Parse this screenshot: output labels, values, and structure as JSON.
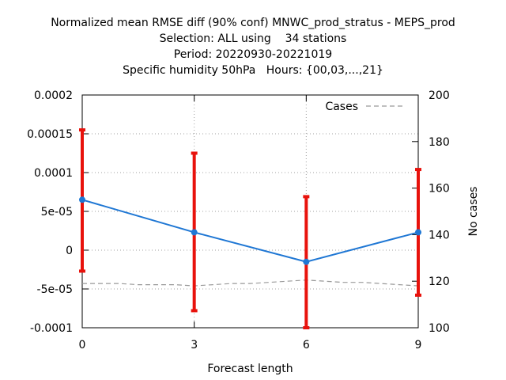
{
  "title_lines": [
    "Normalized mean RMSE diff (90% conf) MNWC_prod_stratus - MEPS_prod",
    "Selection: ALL using    34 stations",
    "Period: 20220930-20221019",
    "Specific humidity 50hPa   Hours: {00,03,...,21}"
  ],
  "chart_data": {
    "type": "line",
    "title": "Normalized mean RMSE diff (90% conf) MNWC_prod_stratus - MEPS_prod",
    "xlabel": "Forecast length",
    "ylabel": "",
    "y2label": "No cases",
    "x": [
      0,
      3,
      6,
      9
    ],
    "xlim": [
      0,
      9
    ],
    "ylim": [
      -0.0001,
      0.0002
    ],
    "y2lim": [
      100,
      200
    ],
    "x_ticks": [
      "0",
      "3",
      "6",
      "9"
    ],
    "y_ticks": [
      "-0.0001",
      "-5e-05",
      "0",
      "5e-05",
      "0.0001",
      "0.00015",
      "0.0002"
    ],
    "y_tick_values": [
      -0.0001,
      -5e-05,
      0,
      5e-05,
      0.0001,
      0.00015,
      0.0002
    ],
    "y2_ticks": [
      "100",
      "120",
      "140",
      "160",
      "180",
      "200"
    ],
    "y2_tick_values": [
      100,
      120,
      140,
      160,
      180,
      200
    ],
    "grid": true,
    "legend_position": "top-right",
    "series": [
      {
        "values": [
          6.5e-05,
          2.3e-05,
          -1.5e-05,
          2.3e-05
        ],
        "ci_low": [
          -2.7e-05,
          -7.8e-05,
          -0.0001,
          -5.8e-05
        ],
        "ci_high": [
          0.000155,
          0.000125,
          6.9e-05,
          0.000104
        ],
        "color": "#1f77d4",
        "errorbar_color": "#e8120c"
      },
      {
        "name": "Cases",
        "axis": "right",
        "x": [
          0,
          0.5,
          1,
          1.5,
          2,
          2.5,
          3,
          3.5,
          4,
          4.5,
          5,
          5.5,
          6,
          6.5,
          7,
          7.5,
          8,
          8.5,
          9
        ],
        "values": [
          119,
          119,
          119,
          118.5,
          118.5,
          118.5,
          118,
          118.5,
          119,
          119,
          119.5,
          120,
          120.5,
          120,
          119.5,
          119.5,
          119,
          118.5,
          118
        ],
        "color": "#999999",
        "dashed": true
      }
    ]
  }
}
